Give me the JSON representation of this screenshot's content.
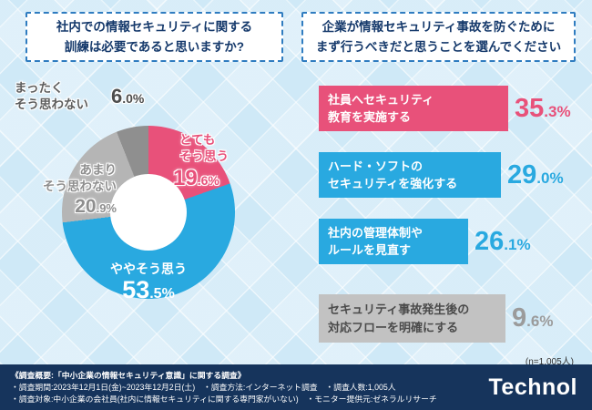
{
  "colors": {
    "background": "#cfe9f7",
    "footer_bg": "#16345c",
    "pink": "#e8517a",
    "blue": "#29a9e0",
    "gray_light": "#b5b5b5",
    "gray_dark": "#8f8f8f"
  },
  "chart_data": [
    {
      "type": "pie",
      "donut": true,
      "title": "社内での情報セキュリティに関する\n訓練は必要であると思いますか?",
      "start_angle_deg": 0,
      "direction": "clockwise",
      "segments": [
        {
          "label": "とても\nそう思う",
          "value": 19.6,
          "color": "#e8517a"
        },
        {
          "label": "ややそう思う",
          "value": 53.5,
          "color": "#29a9e0"
        },
        {
          "label": "あまり\nそう思わない",
          "value": 20.9,
          "color": "#b5b5b5"
        },
        {
          "label": "まったく\nそう思わない",
          "value": 6.0,
          "color": "#8f8f8f"
        }
      ]
    },
    {
      "type": "bar",
      "orientation": "horizontal",
      "title": "企業が情報セキュリティ事故を防ぐために\nまず行うべきだと思うことを選んでください",
      "categories": [
        "社員へセキュリティ\n教育を実施する",
        "ハード・ソフトの\nセキュリティを強化する",
        "社内の管理体制や\nルールを見直す",
        "セキュリティ事故発生後の\n対応フローを明確にする"
      ],
      "values": [
        35.3,
        29.0,
        26.1,
        9.6
      ],
      "colors": [
        "#e8517a",
        "#29a9e0",
        "#29a9e0",
        "#c2c2c2"
      ],
      "note": "(n=1,005人)"
    }
  ],
  "footer": {
    "line1": "《調査概要:「中小企業の情報セキュリティ意識」に関する調査》",
    "line2": "・調査期間:2023年12月1日(金)~2023年12月2日(土)　・調査方法:インターネット調査　・調査人数:1,005人",
    "line3": "・調査対象:中小企業の会社員(社内に情報セキュリティに関する専門家がいない)　・モニター提供元:ゼネラルリサーチ",
    "logo": "Technol"
  }
}
